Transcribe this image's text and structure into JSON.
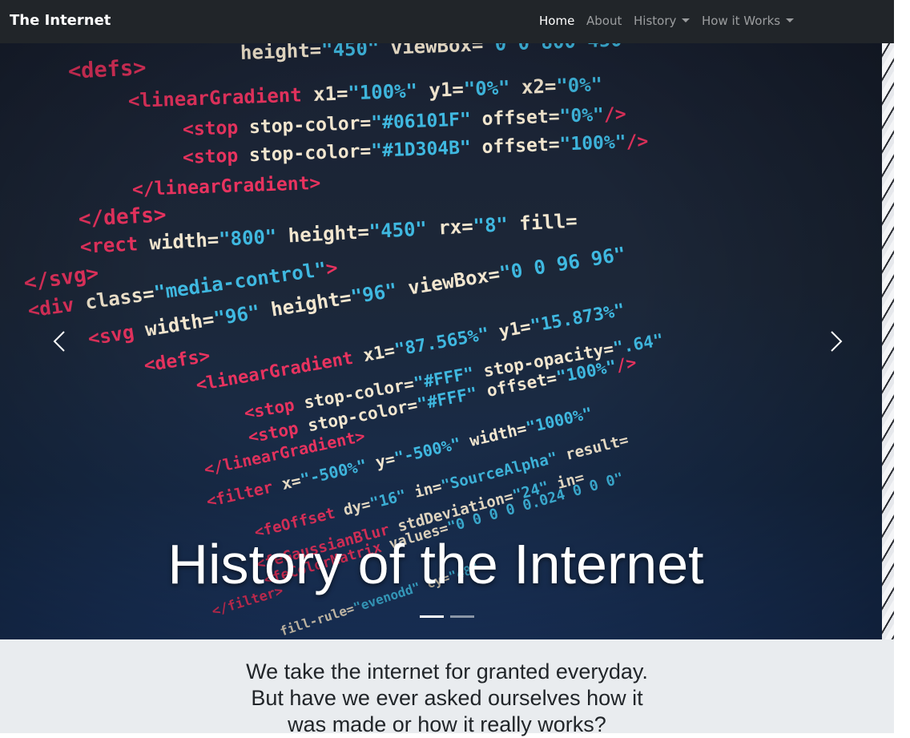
{
  "navbar": {
    "brand": "The Internet",
    "items": [
      {
        "label": "Home"
      },
      {
        "label": "About"
      },
      {
        "label": "History"
      },
      {
        "label": "How it Works"
      }
    ]
  },
  "carousel": {
    "title": "History of the Internet",
    "slide_count": 2,
    "active_slide": 1,
    "prev_icon": "chevron-left-icon",
    "next_icon": "chevron-right-icon"
  },
  "intro": {
    "lines": [
      "We take the internet for granted everyday.",
      "But have we ever asked ourselves how it",
      "was made or how it really works?"
    ]
  },
  "code_image": {
    "lines": [
      [
        [
          "attr",
          "height="
        ],
        [
          "val",
          "\"450\""
        ],
        [
          "attr",
          " viewBox="
        ],
        [
          "val",
          "\"0 0 800 450\""
        ]
      ],
      [
        [
          "tag",
          "<defs>"
        ]
      ],
      [
        [
          "tag",
          "<linearGradient"
        ],
        [
          "attr",
          " x1="
        ],
        [
          "val",
          "\"100%\""
        ],
        [
          "attr",
          " y1="
        ],
        [
          "val",
          "\"0%\""
        ],
        [
          "attr",
          " x2="
        ],
        [
          "val",
          "\"0%\""
        ]
      ],
      [
        [
          "tag",
          "<stop"
        ],
        [
          "attr",
          " stop-color="
        ],
        [
          "val",
          "\"#06101F\""
        ],
        [
          "attr",
          " offset="
        ],
        [
          "val",
          "\"0%\""
        ],
        [
          "tag",
          "/>"
        ]
      ],
      [
        [
          "tag",
          "<stop"
        ],
        [
          "attr",
          " stop-color="
        ],
        [
          "val",
          "\"#1D304B\""
        ],
        [
          "attr",
          " offset="
        ],
        [
          "val",
          "\"100%\""
        ],
        [
          "tag",
          "/>"
        ]
      ],
      [
        [
          "tag",
          "</linearGradient>"
        ]
      ],
      [
        [
          "tag",
          "</defs>"
        ]
      ],
      [
        [
          "tag",
          "<rect"
        ],
        [
          "attr",
          " width="
        ],
        [
          "val",
          "\"800\""
        ],
        [
          "attr",
          " height="
        ],
        [
          "val",
          "\"450\""
        ],
        [
          "attr",
          " rx="
        ],
        [
          "val",
          "\"8\""
        ],
        [
          "attr",
          " fill="
        ]
      ],
      [
        [
          "tag",
          "</svg>"
        ]
      ],
      [
        [
          "tag",
          "<div"
        ],
        [
          "attr",
          " class="
        ],
        [
          "val",
          "\"media-control\""
        ],
        [
          "tag",
          ">"
        ]
      ],
      [
        [
          "tag",
          "<svg"
        ],
        [
          "attr",
          " width="
        ],
        [
          "val",
          "\"96\""
        ],
        [
          "attr",
          " height="
        ],
        [
          "val",
          "\"96\""
        ],
        [
          "attr",
          " viewBox="
        ],
        [
          "val",
          "\"0 0 96 96\""
        ]
      ],
      [
        [
          "tag",
          "<defs>"
        ]
      ],
      [
        [
          "tag",
          "<linearGradient"
        ],
        [
          "attr",
          " x1="
        ],
        [
          "val",
          "\"87.565%\""
        ],
        [
          "attr",
          " y1="
        ],
        [
          "val",
          "\"15.873%\""
        ]
      ],
      [
        [
          "tag",
          "<stop"
        ],
        [
          "attr",
          " stop-color="
        ],
        [
          "val",
          "\"#FFF\""
        ],
        [
          "attr",
          " stop-opacity="
        ],
        [
          "val",
          "\".64\""
        ]
      ],
      [
        [
          "tag",
          "<stop"
        ],
        [
          "attr",
          " stop-color="
        ],
        [
          "val",
          "\"#FFF\""
        ],
        [
          "attr",
          " offset="
        ],
        [
          "val",
          "\"100%\""
        ],
        [
          "tag",
          "/>"
        ]
      ],
      [
        [
          "tag",
          "</linearGradient>"
        ]
      ],
      [
        [
          "tag",
          "<filter"
        ],
        [
          "attr",
          " x="
        ],
        [
          "val",
          "\"-500%\""
        ],
        [
          "attr",
          " y="
        ],
        [
          "val",
          "\"-500%\""
        ],
        [
          "attr",
          " width="
        ],
        [
          "val",
          "\"1000%\""
        ]
      ],
      [
        [
          "tag",
          "<feOffset"
        ],
        [
          "attr",
          " dy="
        ],
        [
          "val",
          "\"16\""
        ],
        [
          "attr",
          " in="
        ],
        [
          "val",
          "\"SourceAlpha\""
        ],
        [
          "attr",
          " result="
        ]
      ],
      [
        [
          "tag",
          "<feGaussianBlur"
        ],
        [
          "attr",
          " stdDeviation="
        ],
        [
          "val",
          "\"24\""
        ],
        [
          "attr",
          " in="
        ]
      ],
      [
        [
          "tag",
          "<feColorMatrix"
        ],
        [
          "attr",
          " values="
        ],
        [
          "val",
          "\"0 0 0 0 0.024 0 0 0\""
        ]
      ],
      [
        [
          "tag",
          "</filter>"
        ]
      ],
      [
        [
          "attr",
          "fill-rule="
        ],
        [
          "val",
          "\"evenodd\""
        ],
        [
          "attr",
          " cy="
        ],
        [
          "val",
          "\"48\""
        ]
      ]
    ]
  }
}
